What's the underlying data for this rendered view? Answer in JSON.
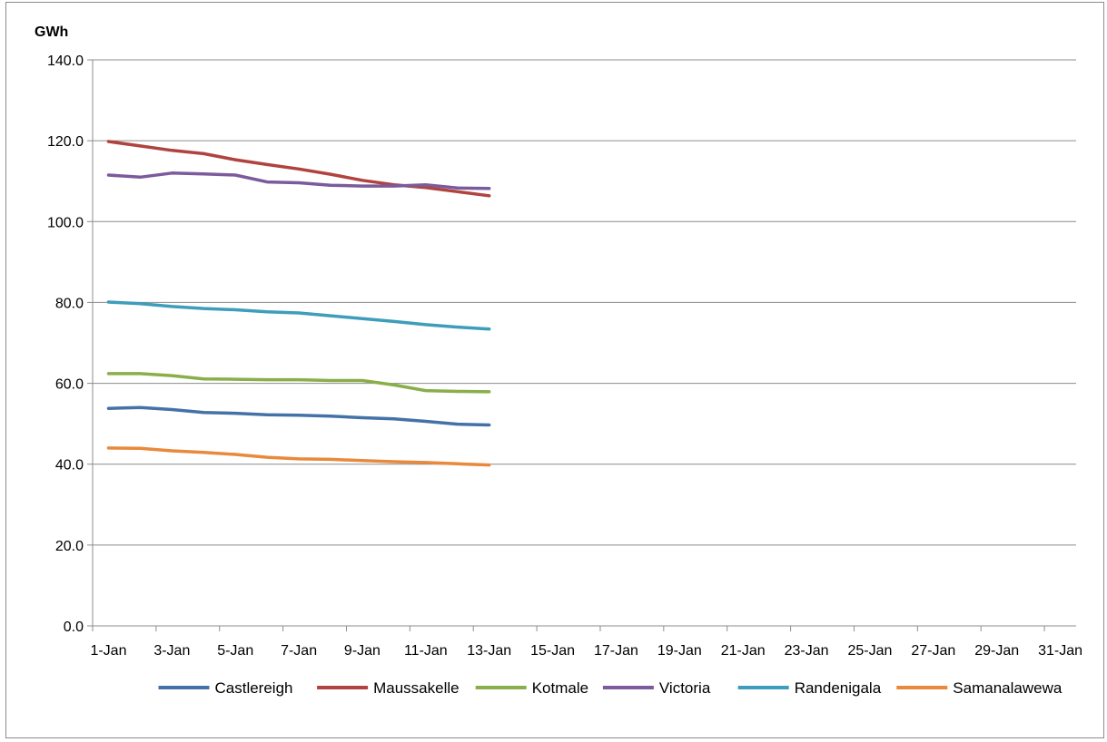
{
  "chart_data": {
    "type": "line",
    "title": "",
    "ylabel": "GWh",
    "xlabel": "",
    "ylim": [
      0,
      140
    ],
    "yticks": [
      0,
      20,
      40,
      60,
      80,
      100,
      120,
      140
    ],
    "ytick_labels": [
      "0.0",
      "20.0",
      "40.0",
      "60.0",
      "80.0",
      "100.0",
      "120.0",
      "140.0"
    ],
    "days": 31,
    "xtick_labels": [
      "1-Jan",
      "3-Jan",
      "5-Jan",
      "7-Jan",
      "9-Jan",
      "11-Jan",
      "13-Jan",
      "15-Jan",
      "17-Jan",
      "19-Jan",
      "21-Jan",
      "23-Jan",
      "25-Jan",
      "27-Jan",
      "29-Jan",
      "31-Jan"
    ],
    "x": [
      "1-Jan",
      "2-Jan",
      "3-Jan",
      "4-Jan",
      "5-Jan",
      "6-Jan",
      "7-Jan",
      "8-Jan",
      "9-Jan",
      "10-Jan",
      "11-Jan",
      "12-Jan",
      "13-Jan"
    ],
    "grid": true,
    "legend_position": "bottom",
    "series": [
      {
        "name": "Castlereigh",
        "color": "#4472A8",
        "values": [
          53.8,
          54.0,
          53.5,
          52.8,
          52.6,
          52.2,
          52.1,
          51.9,
          51.5,
          51.2,
          50.6,
          49.9,
          49.7
        ]
      },
      {
        "name": "Maussakelle",
        "color": "#B0433F",
        "values": [
          119.8,
          118.7,
          117.6,
          116.8,
          115.3,
          114.1,
          113.0,
          111.7,
          110.2,
          109.1,
          108.4,
          107.4,
          106.4
        ]
      },
      {
        "name": "Kotmale",
        "color": "#8AAE4A",
        "values": [
          62.4,
          62.4,
          61.9,
          61.1,
          61.0,
          60.9,
          60.9,
          60.7,
          60.7,
          59.6,
          58.2,
          58.0,
          57.9
        ]
      },
      {
        "name": "Victoria",
        "color": "#7B5B9C",
        "values": [
          111.5,
          111.0,
          112.0,
          111.8,
          111.5,
          109.8,
          109.6,
          109.0,
          108.8,
          108.8,
          109.1,
          108.3,
          108.2
        ]
      },
      {
        "name": "Randenigala",
        "color": "#3E9DBA",
        "values": [
          80.1,
          79.7,
          79.0,
          78.5,
          78.2,
          77.7,
          77.4,
          76.7,
          76.0,
          75.3,
          74.5,
          73.9,
          73.4
        ]
      },
      {
        "name": "Samanalawewa",
        "color": "#E8893C",
        "values": [
          44.0,
          43.9,
          43.3,
          42.9,
          42.4,
          41.7,
          41.3,
          41.2,
          40.9,
          40.6,
          40.4,
          40.1,
          39.8
        ]
      }
    ]
  }
}
